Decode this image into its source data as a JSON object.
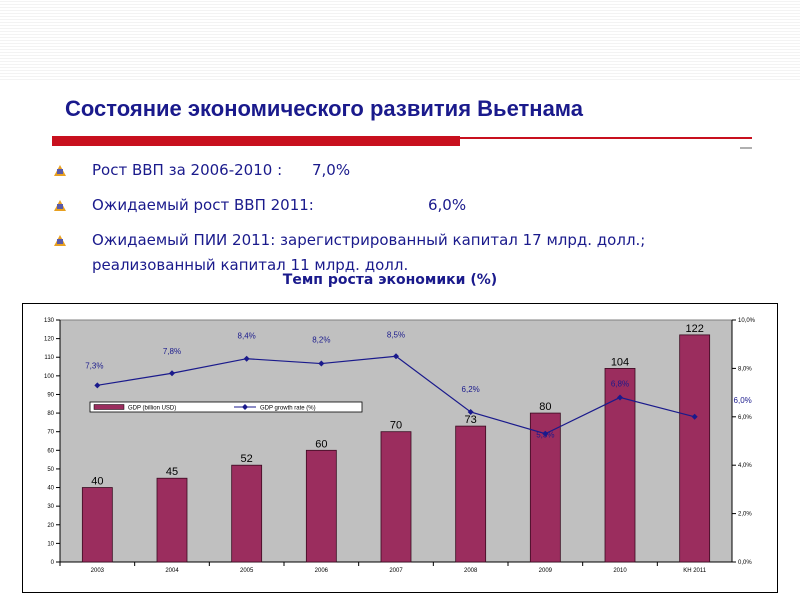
{
  "slide": {
    "title": "Состояние экономического развития Вьетнама",
    "bullets": [
      {
        "label": "Рост ВВП за 2006-2010 :",
        "value": "7,0%"
      },
      {
        "label": "Ожидаемый рост ВВП 2011:",
        "value": "6,0%"
      },
      {
        "text": "Ожидаемый ПИИ 2011: зарегистрированный капитал 17 млрд. долл.; реализованный капитал 11 млрд. долл."
      }
    ],
    "chart_title": "Темп роста экономики (%)"
  },
  "colors": {
    "title": "#1a1a8c",
    "accent_red": "#c8101e",
    "bar": "#9b2d5e",
    "line": "#1a1a8c",
    "plot_bg": "#c0c0c0"
  },
  "chart_data": {
    "type": "bar",
    "categories": [
      "2003",
      "2004",
      "2005",
      "2006",
      "2007",
      "2008",
      "2009",
      "2010",
      "KH 2011"
    ],
    "series": [
      {
        "name": "GDP (billion USD)",
        "type": "bar",
        "axis": "left",
        "values": [
          40,
          45,
          52,
          60,
          70,
          73,
          80,
          104,
          122
        ],
        "labels": [
          "40",
          "45",
          "52",
          "60",
          "70",
          "73",
          "80",
          "104",
          "122"
        ]
      },
      {
        "name": "GDP growth rate (%)",
        "type": "line",
        "axis": "right",
        "values": [
          7.3,
          7.8,
          8.4,
          8.2,
          8.5,
          6.2,
          5.3,
          6.8,
          6.0
        ],
        "labels": [
          "7,3%",
          "7,8%",
          "8,4%",
          "8,2%",
          "8,5%",
          "6,2%",
          "5,3%",
          "6,8%",
          "6,0%"
        ]
      }
    ],
    "y_left": {
      "min": 0,
      "max": 130,
      "ticks": [
        "0",
        "10",
        "20",
        "30",
        "40",
        "50",
        "60",
        "70",
        "80",
        "90",
        "100",
        "110",
        "120",
        "130"
      ]
    },
    "y_right": {
      "min": 0,
      "max": 10,
      "ticks": [
        "0,0%",
        "2,0%",
        "4,0%",
        "6,0%",
        "8,0%",
        "10,0%"
      ]
    },
    "legend": "inside-left",
    "grid": false
  }
}
